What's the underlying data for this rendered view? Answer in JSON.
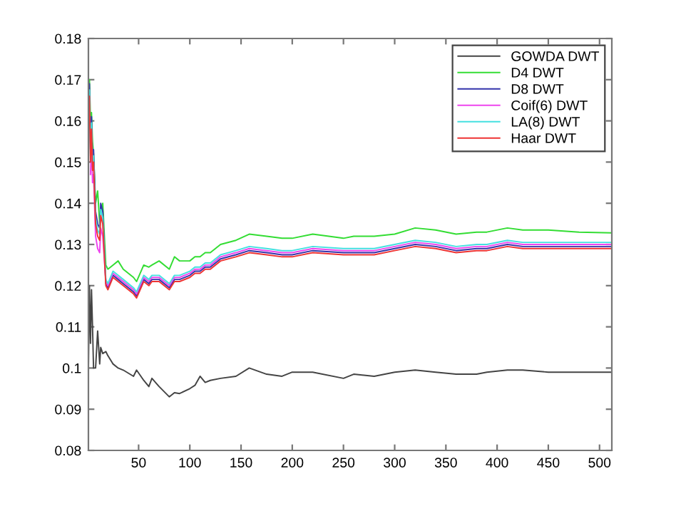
{
  "chart_data": {
    "type": "line",
    "x": [
      1,
      2,
      3,
      4,
      5,
      6,
      8,
      10,
      12,
      13,
      15,
      18,
      20,
      25,
      30,
      35,
      45,
      48,
      55,
      60,
      63,
      70,
      80,
      85,
      90,
      100,
      105,
      110,
      115,
      120,
      130,
      145,
      158,
      175,
      190,
      200,
      220,
      250,
      260,
      280,
      300,
      320,
      340,
      360,
      380,
      390,
      410,
      425,
      450,
      480,
      512
    ],
    "series": [
      {
        "name": "GOWDA DWT",
        "color": "#444444",
        "values": [
          0.1,
          0.12,
          0.106,
          0.119,
          0.11,
          0.1,
          0.1,
          0.109,
          0.101,
          0.105,
          0.1035,
          0.104,
          0.103,
          0.101,
          0.1,
          0.0995,
          0.098,
          0.0995,
          0.097,
          0.0955,
          0.0975,
          0.0955,
          0.093,
          0.094,
          0.0938,
          0.095,
          0.0958,
          0.098,
          0.0965,
          0.097,
          0.0975,
          0.098,
          0.1,
          0.0985,
          0.098,
          0.099,
          0.099,
          0.0975,
          0.0985,
          0.098,
          0.099,
          0.0995,
          0.099,
          0.0985,
          0.0985,
          0.099,
          0.0995,
          0.0995,
          0.099,
          0.099,
          0.099
        ]
      },
      {
        "name": "D4 DWT",
        "color": "#33dd33",
        "values": [
          0.165,
          0.17,
          0.16,
          0.162,
          0.155,
          0.152,
          0.14,
          0.143,
          0.135,
          0.138,
          0.14,
          0.125,
          0.124,
          0.125,
          0.126,
          0.124,
          0.122,
          0.121,
          0.125,
          0.1245,
          0.125,
          0.126,
          0.124,
          0.127,
          0.126,
          0.126,
          0.127,
          0.127,
          0.128,
          0.128,
          0.13,
          0.131,
          0.1325,
          0.132,
          0.1315,
          0.1315,
          0.1325,
          0.1315,
          0.132,
          0.132,
          0.1325,
          0.134,
          0.1335,
          0.1325,
          0.133,
          0.133,
          0.134,
          0.1335,
          0.1335,
          0.133,
          0.1328
        ]
      },
      {
        "name": "D8 DWT",
        "color": "#3333aa",
        "values": [
          0.163,
          0.169,
          0.153,
          0.161,
          0.151,
          0.153,
          0.138,
          0.135,
          0.134,
          0.14,
          0.138,
          0.1205,
          0.1195,
          0.1225,
          0.1215,
          0.1205,
          0.1185,
          0.1175,
          0.1215,
          0.1205,
          0.1215,
          0.1215,
          0.1195,
          0.1215,
          0.1215,
          0.1225,
          0.1235,
          0.1235,
          0.1245,
          0.1245,
          0.1265,
          0.1275,
          0.1285,
          0.128,
          0.1275,
          0.1275,
          0.1285,
          0.128,
          0.128,
          0.128,
          0.129,
          0.13,
          0.1295,
          0.1285,
          0.129,
          0.129,
          0.13,
          0.1295,
          0.1295,
          0.1295,
          0.1295
        ]
      },
      {
        "name": "Coif(6) DWT",
        "color": "#ee44ee",
        "values": [
          null,
          null,
          0.147,
          0.155,
          0.145,
          0.147,
          0.132,
          0.129,
          0.128,
          0.134,
          0.132,
          0.121,
          0.12,
          0.123,
          0.122,
          0.121,
          0.119,
          0.118,
          0.122,
          0.121,
          0.122,
          0.122,
          0.12,
          0.122,
          0.122,
          0.123,
          0.124,
          0.124,
          0.125,
          0.125,
          0.127,
          0.128,
          0.129,
          0.1285,
          0.128,
          0.128,
          0.129,
          0.1285,
          0.1285,
          0.1285,
          0.1295,
          0.1305,
          0.13,
          0.129,
          0.1295,
          0.1295,
          0.1305,
          0.13,
          0.13,
          0.13,
          0.13
        ]
      },
      {
        "name": "LA(8) DWT",
        "color": "#44e0e0",
        "values": [
          0.1615,
          0.1675,
          0.1515,
          0.1595,
          0.1495,
          0.1515,
          0.1365,
          0.1335,
          0.1325,
          0.1385,
          0.1365,
          0.1215,
          0.1205,
          0.1235,
          0.1225,
          0.1215,
          0.1195,
          0.1185,
          0.1225,
          0.1215,
          0.1225,
          0.1225,
          0.1205,
          0.1225,
          0.1225,
          0.1235,
          0.1245,
          0.1245,
          0.1255,
          0.1255,
          0.1275,
          0.1285,
          0.1295,
          0.129,
          0.1285,
          0.1285,
          0.1295,
          0.129,
          0.129,
          0.129,
          0.13,
          0.131,
          0.1305,
          0.1295,
          0.13,
          0.13,
          0.131,
          0.1305,
          0.1305,
          0.1305,
          0.1305
        ]
      },
      {
        "name": "Haar DWT",
        "color": "#ee3333",
        "values": [
          0.16,
          0.166,
          0.15,
          0.158,
          0.148,
          0.15,
          0.135,
          0.132,
          0.131,
          0.137,
          0.135,
          0.12,
          0.119,
          0.122,
          0.121,
          0.12,
          0.118,
          0.117,
          0.121,
          0.12,
          0.121,
          0.121,
          0.119,
          0.121,
          0.121,
          0.122,
          0.123,
          0.123,
          0.124,
          0.124,
          0.126,
          0.127,
          0.128,
          0.1275,
          0.127,
          0.127,
          0.128,
          0.1275,
          0.1275,
          0.1275,
          0.1285,
          0.1295,
          0.129,
          0.128,
          0.1285,
          0.1285,
          0.1295,
          0.129,
          0.129,
          0.129,
          0.129
        ]
      }
    ],
    "xlim": [
      1,
      512
    ],
    "ylim": [
      0.08,
      0.18
    ],
    "xticks": [
      50,
      100,
      150,
      200,
      250,
      300,
      350,
      400,
      450,
      500
    ],
    "yticks": [
      0.08,
      0.09,
      0.1,
      0.11,
      0.12,
      0.13,
      0.14,
      0.15,
      0.16,
      0.17,
      0.18
    ],
    "legend": "top right",
    "grid": false
  }
}
